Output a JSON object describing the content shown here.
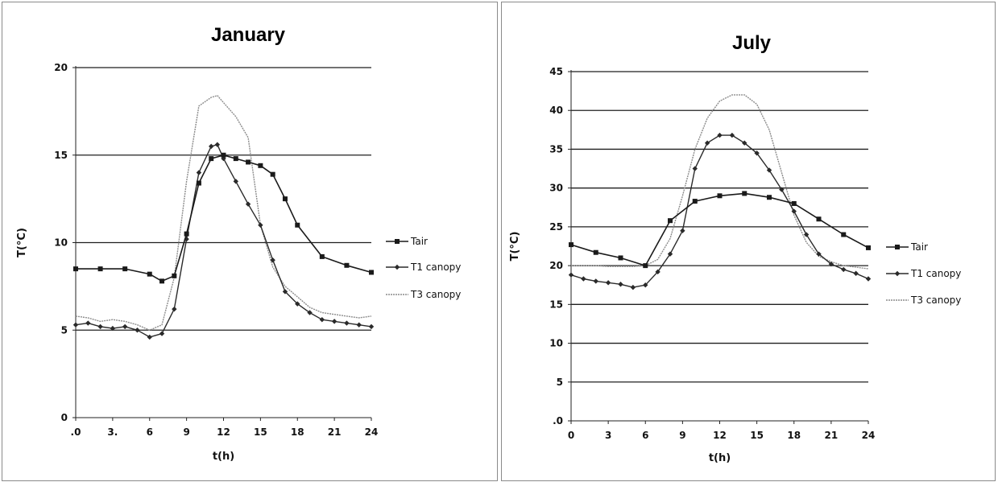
{
  "colors": {
    "tair": "#1a1a1a",
    "t1": "#2a2a2a",
    "t3": "#8c8c8c",
    "grid": "#1f1f1f",
    "frame": "#8a8a8a"
  },
  "chart_data": [
    {
      "type": "line",
      "title": "January",
      "xlabel": "t(h)",
      "ylabel": "T(°C)",
      "xlim": [
        0,
        24
      ],
      "ylim": [
        0,
        20
      ],
      "xticks": [
        0,
        3,
        6,
        9,
        12,
        15,
        18,
        21,
        24
      ],
      "xtick_labels": [
        ".0",
        "3.",
        "6",
        "9",
        "12",
        "15",
        "18",
        "21",
        "24"
      ],
      "yticks": [
        0,
        5,
        10,
        15,
        20
      ],
      "ytick_labels": [
        "0",
        "5",
        "10",
        "15",
        "20"
      ],
      "grid": "horizontal",
      "legend_position": "right",
      "series": [
        {
          "name": "Tair",
          "marker": "square",
          "x": [
            0,
            2,
            4,
            6,
            7,
            8,
            9,
            10,
            11,
            12,
            13,
            14,
            15,
            16,
            17,
            18,
            20,
            22,
            24
          ],
          "y": [
            8.5,
            8.5,
            8.5,
            8.2,
            7.8,
            8.1,
            10.5,
            13.4,
            14.8,
            15.0,
            14.8,
            14.6,
            14.4,
            13.9,
            12.5,
            11.0,
            9.2,
            8.7,
            8.3
          ]
        },
        {
          "name": "T1 canopy",
          "marker": "diamond",
          "x": [
            0,
            1,
            2,
            3,
            4,
            5,
            6,
            7,
            8,
            9,
            10,
            11,
            11.5,
            12,
            13,
            14,
            15,
            16,
            17,
            18,
            19,
            20,
            21,
            22,
            23,
            24
          ],
          "y": [
            5.3,
            5.4,
            5.2,
            5.1,
            5.2,
            5.0,
            4.6,
            4.8,
            6.2,
            10.2,
            14.0,
            15.5,
            15.6,
            14.8,
            13.5,
            12.2,
            11.0,
            9.0,
            7.2,
            6.5,
            6.0,
            5.6,
            5.5,
            5.4,
            5.3,
            5.2
          ]
        },
        {
          "name": "T3 canopy",
          "marker": "none",
          "x": [
            0,
            1,
            2,
            3,
            4,
            5,
            6,
            7,
            8,
            9,
            10,
            11,
            11.5,
            12,
            13,
            14,
            15,
            16,
            17,
            18,
            19,
            20,
            21,
            22,
            23,
            24
          ],
          "y": [
            5.8,
            5.7,
            5.5,
            5.6,
            5.5,
            5.3,
            5.0,
            5.3,
            8.0,
            13.5,
            17.8,
            18.3,
            18.4,
            18.0,
            17.2,
            16.0,
            11.0,
            8.6,
            7.5,
            6.9,
            6.3,
            6.0,
            5.9,
            5.8,
            5.7,
            5.8
          ]
        }
      ]
    },
    {
      "type": "line",
      "title": "July",
      "xlabel": "t(h)",
      "ylabel": "T(°C)",
      "xlim": [
        0,
        24
      ],
      "ylim": [
        0,
        45
      ],
      "xticks": [
        0,
        3,
        6,
        9,
        12,
        15,
        18,
        21,
        24
      ],
      "xtick_labels": [
        "0",
        "3",
        "6",
        "9",
        "12",
        "15",
        "18",
        "21",
        "24"
      ],
      "yticks": [
        0,
        5,
        10,
        15,
        20,
        25,
        30,
        35,
        40,
        45
      ],
      "ytick_labels": [
        ".0",
        "5",
        "10",
        "15",
        "20",
        "25",
        "30",
        "35",
        "40",
        "45"
      ],
      "grid": "horizontal",
      "legend_position": "right",
      "series": [
        {
          "name": "Tair",
          "marker": "square",
          "x": [
            0,
            2,
            4,
            6,
            8,
            10,
            12,
            14,
            16,
            18,
            20,
            22,
            24
          ],
          "y": [
            22.7,
            21.7,
            21.0,
            20.0,
            25.8,
            28.3,
            29.0,
            29.3,
            28.8,
            28.0,
            26.0,
            24.0,
            22.3
          ]
        },
        {
          "name": "T1 canopy",
          "marker": "diamond",
          "x": [
            0,
            1,
            2,
            3,
            4,
            5,
            6,
            7,
            8,
            9,
            10,
            11,
            12,
            13,
            14,
            15,
            16,
            17,
            18,
            19,
            20,
            21,
            22,
            23,
            24
          ],
          "y": [
            18.8,
            18.3,
            18.0,
            17.8,
            17.6,
            17.2,
            17.5,
            19.2,
            21.5,
            24.5,
            32.5,
            35.8,
            36.8,
            36.8,
            35.8,
            34.5,
            32.3,
            29.8,
            27.0,
            24.0,
            21.5,
            20.2,
            19.5,
            19.0,
            18.3
          ]
        },
        {
          "name": "T3 canopy",
          "marker": "none",
          "x": [
            0,
            1,
            2,
            3,
            4,
            5,
            6,
            7,
            8,
            9,
            10,
            11,
            12,
            13,
            14,
            15,
            16,
            17,
            18,
            19,
            20,
            21,
            22,
            23,
            24
          ],
          "y": [
            20.0,
            20.0,
            20.0,
            19.9,
            19.9,
            19.9,
            20.0,
            20.8,
            23.5,
            29.0,
            35.0,
            39.0,
            41.2,
            42.0,
            42.0,
            40.8,
            37.5,
            32.0,
            26.5,
            23.0,
            21.2,
            20.5,
            20.0,
            19.8,
            19.6
          ]
        }
      ]
    }
  ]
}
